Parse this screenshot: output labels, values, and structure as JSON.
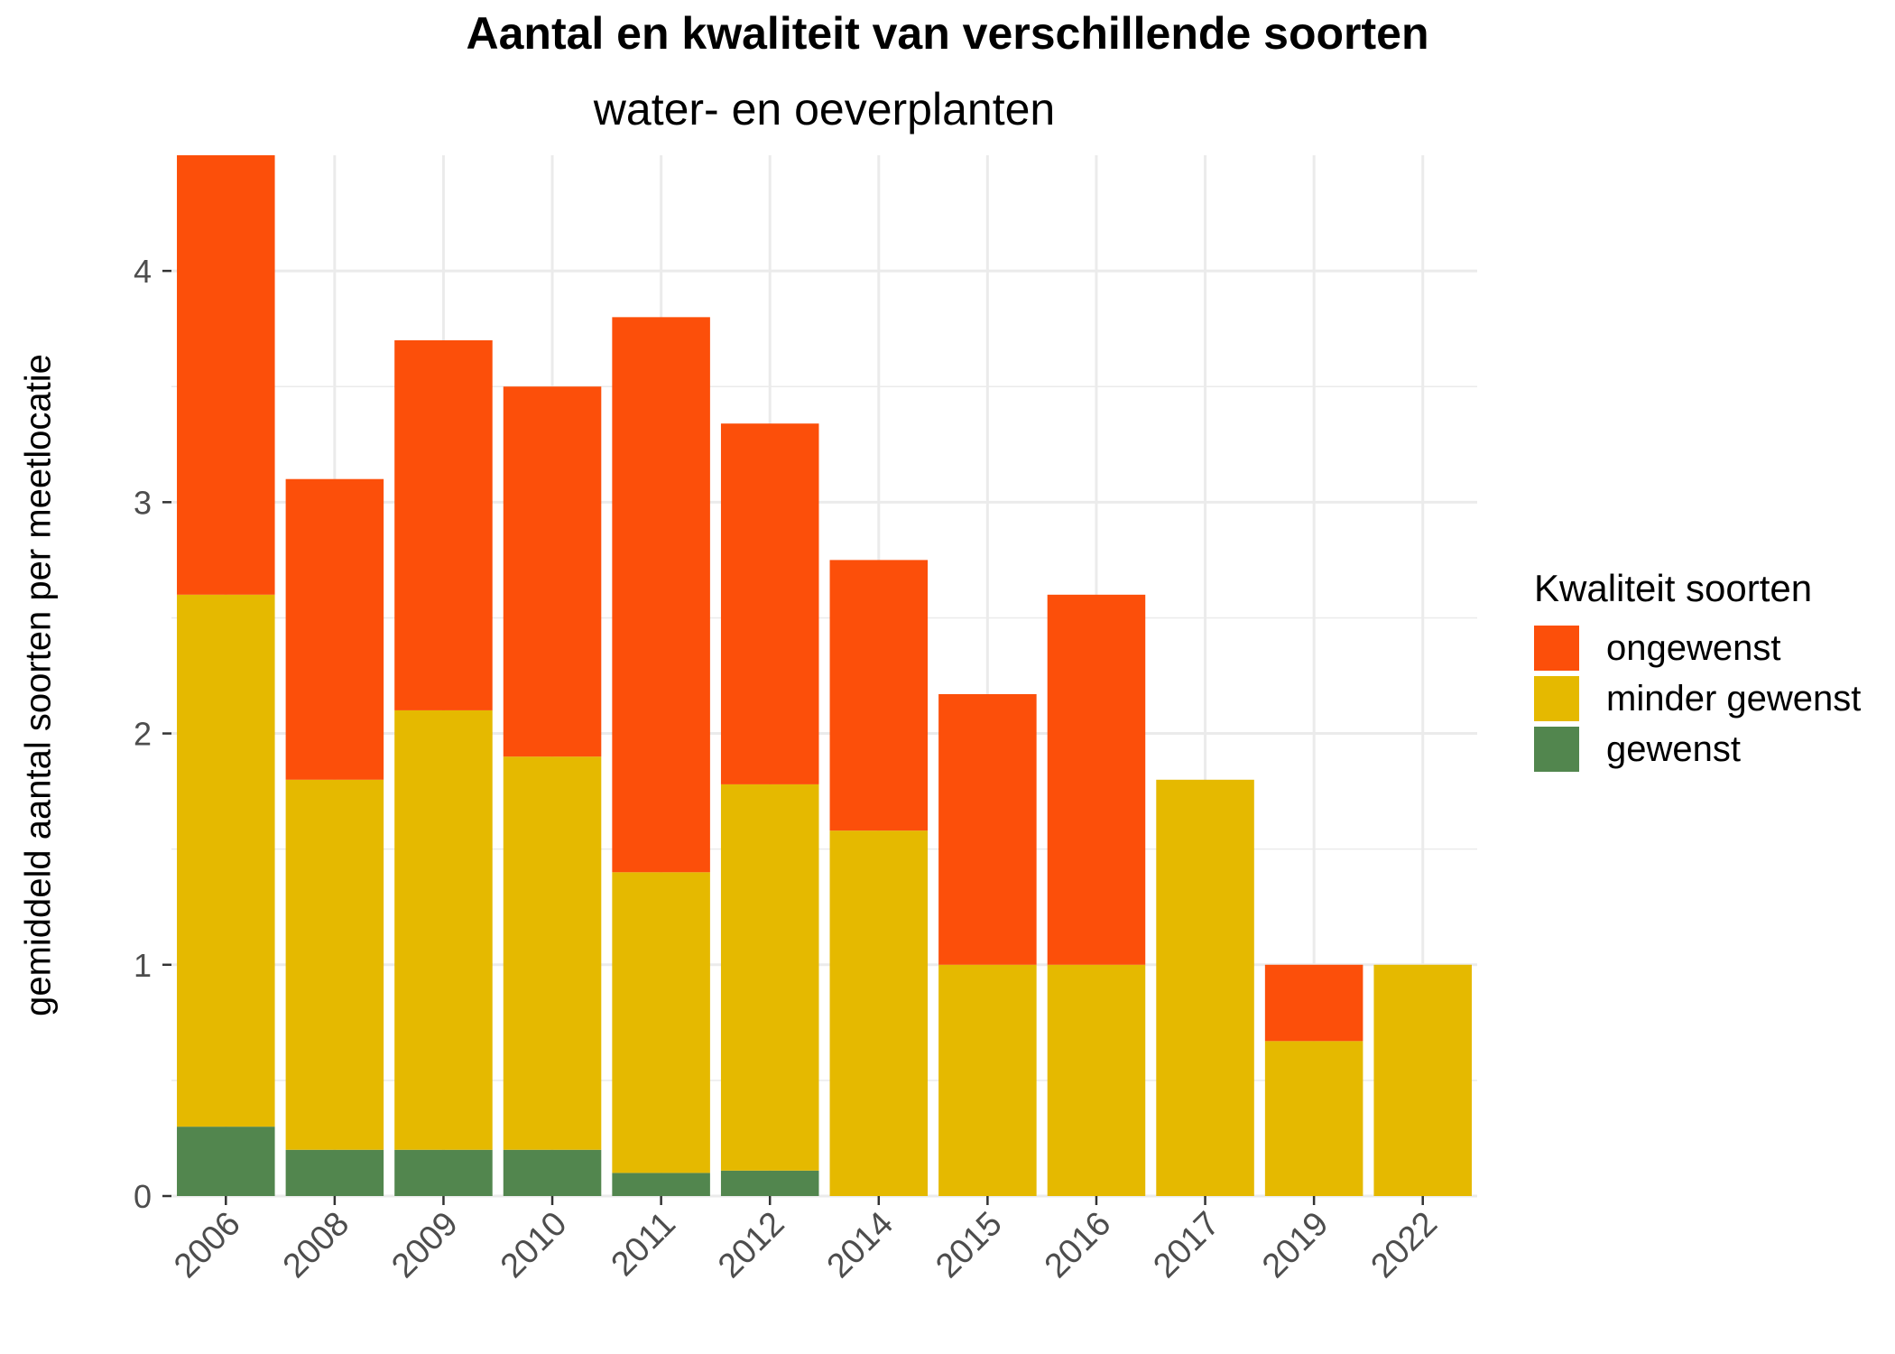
{
  "colors": {
    "ongewenst": "#fc4f0a",
    "minder_gewenst": "#e5b900",
    "gewenst": "#52864e",
    "grid": "#ebebeb",
    "tick_text": "#4d4d4d"
  },
  "chart_data": {
    "type": "bar",
    "stacked": true,
    "title": "Aantal en kwaliteit van verschillende soorten",
    "subtitle": "water- en oeverplanten",
    "xlabel": "",
    "ylabel": "gemiddeld aantal soorten per meetlocatie",
    "ylim": [
      0,
      4.5
    ],
    "yticks": [
      "0",
      "1",
      "2",
      "3",
      "4"
    ],
    "grid": true,
    "categories": [
      "2006",
      "2008",
      "2009",
      "2010",
      "2011",
      "2012",
      "2014",
      "2015",
      "2016",
      "2017",
      "2019",
      "2022"
    ],
    "series": [
      {
        "key": "gewenst",
        "name": "gewenst",
        "values": [
          0.3,
          0.2,
          0.2,
          0.2,
          0.1,
          0.11,
          0,
          0,
          0,
          0,
          0,
          0
        ]
      },
      {
        "key": "minder_gewenst",
        "name": "minder gewenst",
        "values": [
          2.3,
          1.6,
          1.9,
          1.7,
          1.3,
          1.67,
          1.58,
          1.0,
          1.0,
          1.8,
          0.67,
          1.0
        ]
      },
      {
        "key": "ongewenst",
        "name": "ongewenst",
        "values": [
          1.9,
          1.3,
          1.6,
          1.6,
          2.4,
          1.56,
          1.17,
          1.17,
          1.6,
          0,
          0.33,
          0
        ]
      }
    ],
    "legend": {
      "title": "Kwaliteit soorten",
      "position": "right",
      "items": [
        {
          "key": "ongewenst",
          "label": "ongewenst"
        },
        {
          "key": "minder_gewenst",
          "label": "minder gewenst"
        },
        {
          "key": "gewenst",
          "label": "gewenst"
        }
      ]
    }
  }
}
